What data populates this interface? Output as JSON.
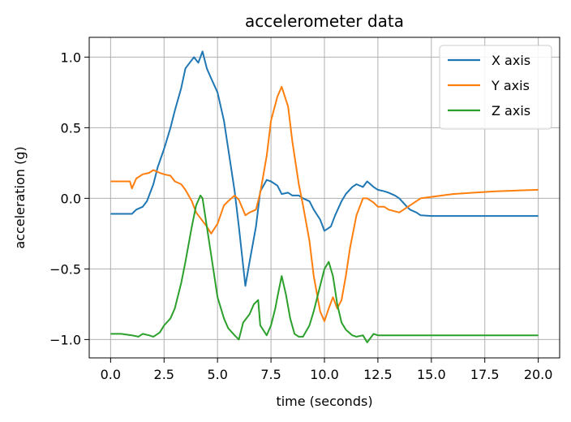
{
  "chart_data": {
    "type": "line",
    "title": "accelerometer data",
    "xlabel": "time (seconds)",
    "ylabel": "acceleration (g)",
    "xlim": [
      -1.0,
      21.0
    ],
    "ylim": [
      -1.13,
      1.14
    ],
    "xticks": [
      0.0,
      2.5,
      5.0,
      7.5,
      10.0,
      12.5,
      15.0,
      17.5,
      20.0
    ],
    "xtick_labels": [
      "0.0",
      "2.5",
      "5.0",
      "7.5",
      "10.0",
      "12.5",
      "15.0",
      "17.5",
      "20.0"
    ],
    "yticks": [
      1.0,
      0.5,
      0.0,
      -0.5,
      -1.0
    ],
    "ytick_labels": [
      "1.0",
      "0.5",
      "0.0",
      "−0.5",
      "−1.0"
    ],
    "grid": true,
    "legend_position": "top-right",
    "series": [
      {
        "name": "X axis",
        "color": "#1f77b4",
        "x": [
          0,
          0.5,
          1,
          1.2,
          1.5,
          1.7,
          2,
          2.2,
          2.5,
          2.8,
          3,
          3.3,
          3.5,
          3.7,
          3.9,
          4.1,
          4.3,
          4.5,
          4.7,
          5,
          5.3,
          5.5,
          5.8,
          6,
          6.3,
          6.5,
          6.8,
          7,
          7.3,
          7.5,
          7.8,
          8,
          8.3,
          8.5,
          8.8,
          9,
          9.3,
          9.5,
          9.8,
          10,
          10.3,
          10.5,
          10.8,
          11,
          11.3,
          11.5,
          11.8,
          12,
          12.3,
          12.5,
          12.8,
          13,
          13.3,
          13.5,
          13.8,
          14,
          14.3,
          14.5,
          15,
          15.5,
          16,
          17,
          18,
          19,
          20
        ],
        "y": [
          -0.11,
          -0.11,
          -0.11,
          -0.08,
          -0.06,
          -0.02,
          0.1,
          0.22,
          0.35,
          0.5,
          0.62,
          0.78,
          0.92,
          0.96,
          1.0,
          0.96,
          1.04,
          0.92,
          0.85,
          0.75,
          0.55,
          0.35,
          0.05,
          -0.2,
          -0.62,
          -0.45,
          -0.2,
          0.05,
          0.13,
          0.12,
          0.09,
          0.03,
          0.04,
          0.02,
          0.02,
          0.0,
          -0.02,
          -0.08,
          -0.15,
          -0.23,
          -0.2,
          -0.12,
          -0.02,
          0.03,
          0.08,
          0.1,
          0.08,
          0.12,
          0.08,
          0.06,
          0.05,
          0.04,
          0.02,
          0.0,
          -0.05,
          -0.08,
          -0.1,
          -0.12,
          -0.125,
          -0.125,
          -0.125,
          -0.125,
          -0.125,
          -0.125,
          -0.125
        ]
      },
      {
        "name": "Y axis",
        "color": "#ff7f0e",
        "x": [
          0,
          0.5,
          0.9,
          1,
          1.2,
          1.5,
          1.8,
          2,
          2.3,
          2.5,
          2.8,
          3,
          3.3,
          3.5,
          3.8,
          4,
          4.3,
          4.5,
          4.7,
          5,
          5.3,
          5.5,
          5.8,
          6,
          6.3,
          6.5,
          6.8,
          7,
          7.3,
          7.5,
          7.8,
          8,
          8.3,
          8.5,
          8.8,
          9,
          9.3,
          9.5,
          9.8,
          10,
          10.2,
          10.4,
          10.6,
          10.8,
          11,
          11.2,
          11.5,
          11.8,
          12,
          12.3,
          12.5,
          12.8,
          13,
          13.5,
          14,
          14.5,
          15,
          16,
          17,
          18,
          19,
          20
        ],
        "y": [
          0.12,
          0.12,
          0.12,
          0.07,
          0.14,
          0.17,
          0.18,
          0.2,
          0.18,
          0.17,
          0.16,
          0.12,
          0.1,
          0.06,
          -0.02,
          -0.1,
          -0.16,
          -0.2,
          -0.25,
          -0.18,
          -0.05,
          -0.02,
          0.02,
          -0.01,
          -0.12,
          -0.1,
          -0.08,
          0.04,
          0.3,
          0.55,
          0.72,
          0.79,
          0.65,
          0.4,
          0.1,
          -0.05,
          -0.3,
          -0.55,
          -0.8,
          -0.87,
          -0.78,
          -0.7,
          -0.78,
          -0.72,
          -0.55,
          -0.35,
          -0.12,
          0.0,
          0.0,
          -0.03,
          -0.06,
          -0.06,
          -0.08,
          -0.1,
          -0.05,
          0.0,
          0.01,
          0.03,
          0.04,
          0.05,
          0.055,
          0.06
        ]
      },
      {
        "name": "Z axis",
        "color": "#2ca02c",
        "x": [
          0,
          0.5,
          1,
          1.3,
          1.5,
          1.8,
          2,
          2.3,
          2.5,
          2.8,
          3,
          3.3,
          3.5,
          3.8,
          4,
          4.2,
          4.3,
          4.5,
          4.7,
          5,
          5.3,
          5.5,
          5.8,
          6,
          6.2,
          6.5,
          6.7,
          6.9,
          7,
          7.3,
          7.5,
          7.7,
          7.8,
          8,
          8.2,
          8.4,
          8.6,
          8.8,
          9,
          9.3,
          9.5,
          9.8,
          10,
          10.2,
          10.4,
          10.6,
          10.8,
          11,
          11.3,
          11.5,
          11.8,
          12,
          12.3,
          12.5,
          13,
          13.5,
          14,
          15,
          16,
          17,
          18,
          19,
          20
        ],
        "y": [
          -0.96,
          -0.96,
          -0.97,
          -0.98,
          -0.96,
          -0.97,
          -0.98,
          -0.95,
          -0.9,
          -0.85,
          -0.78,
          -0.6,
          -0.45,
          -0.2,
          -0.05,
          0.02,
          0.0,
          -0.2,
          -0.4,
          -0.7,
          -0.85,
          -0.92,
          -0.97,
          -1.0,
          -0.88,
          -0.82,
          -0.75,
          -0.72,
          -0.9,
          -0.97,
          -0.9,
          -0.78,
          -0.7,
          -0.55,
          -0.68,
          -0.85,
          -0.96,
          -0.98,
          -0.98,
          -0.9,
          -0.8,
          -0.62,
          -0.5,
          -0.45,
          -0.55,
          -0.75,
          -0.88,
          -0.93,
          -0.97,
          -0.98,
          -0.97,
          -1.02,
          -0.96,
          -0.97,
          -0.97,
          -0.97,
          -0.97,
          -0.97,
          -0.97,
          -0.97,
          -0.97,
          -0.97,
          -0.97
        ]
      }
    ]
  }
}
